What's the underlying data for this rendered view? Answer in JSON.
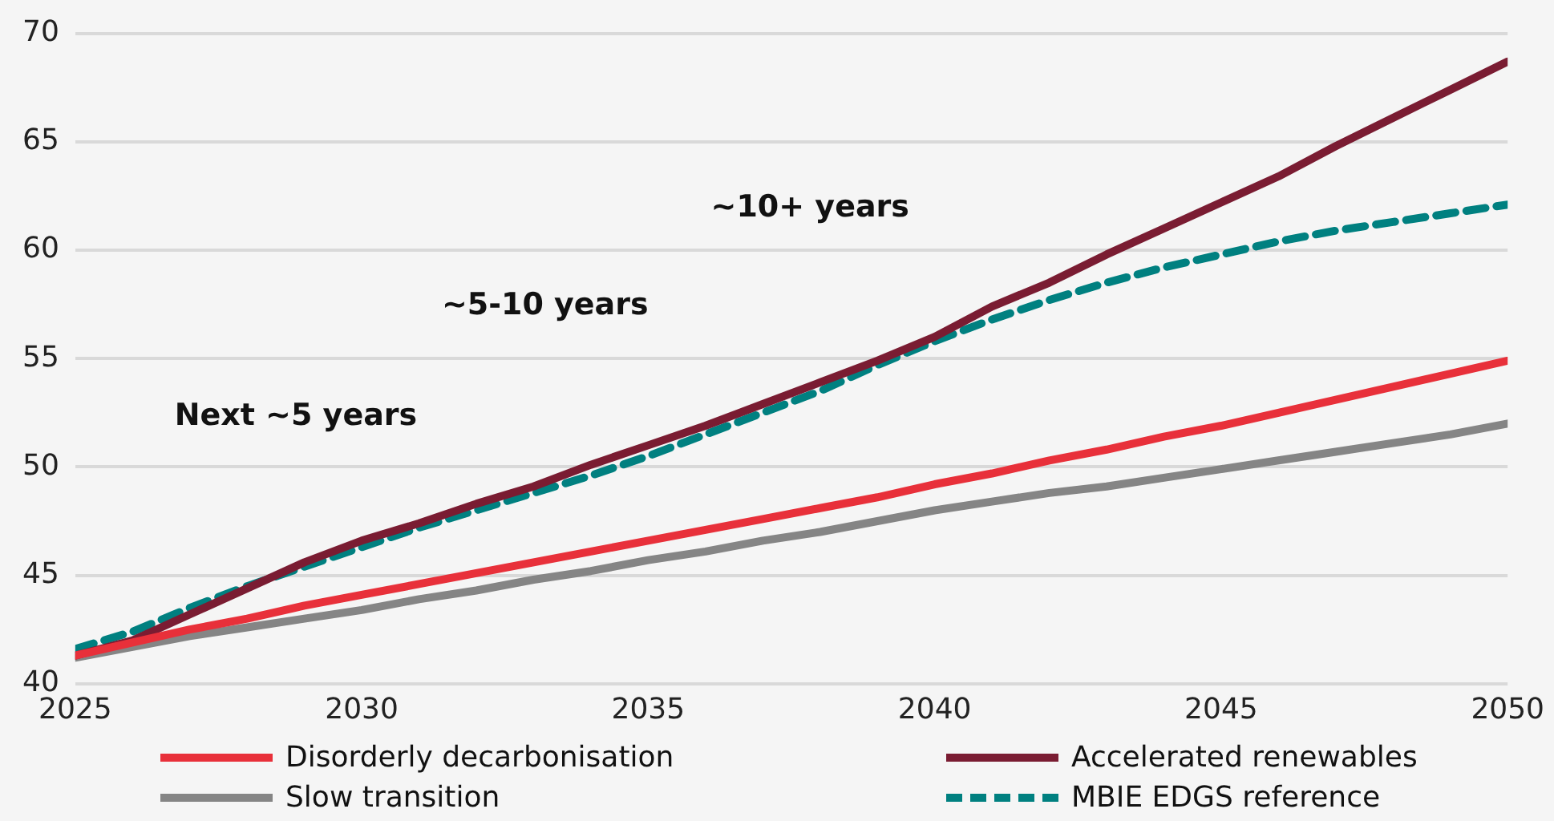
{
  "chart_data": {
    "type": "line",
    "x": [
      2025,
      2026,
      2027,
      2028,
      2029,
      2030,
      2031,
      2032,
      2033,
      2034,
      2035,
      2036,
      2037,
      2038,
      2039,
      2040,
      2041,
      2042,
      2043,
      2044,
      2045,
      2046,
      2047,
      2048,
      2049,
      2050
    ],
    "series": [
      {
        "name": "Disorderly decarbonisation",
        "color": "#e8303a",
        "line_style": "solid",
        "values": [
          41.3,
          41.9,
          42.5,
          43.0,
          43.6,
          44.1,
          44.6,
          45.1,
          45.6,
          46.1,
          46.6,
          47.1,
          47.6,
          48.1,
          48.6,
          49.2,
          49.7,
          50.3,
          50.8,
          51.4,
          51.9,
          52.5,
          53.1,
          53.7,
          54.3,
          54.9
        ]
      },
      {
        "name": "Accelerated renewables",
        "color": "#7a1c32",
        "line_style": "solid",
        "values": [
          41.3,
          42.0,
          43.2,
          44.4,
          45.6,
          46.6,
          47.4,
          48.3,
          49.1,
          50.1,
          51.0,
          51.9,
          52.9,
          53.9,
          54.9,
          56.0,
          57.4,
          58.5,
          59.8,
          61.0,
          62.2,
          63.4,
          64.8,
          66.1,
          67.4,
          68.7
        ]
      },
      {
        "name": "Slow transition",
        "color": "#858585",
        "line_style": "solid",
        "values": [
          41.2,
          41.7,
          42.2,
          42.6,
          43.0,
          43.4,
          43.9,
          44.3,
          44.8,
          45.2,
          45.7,
          46.1,
          46.6,
          47.0,
          47.5,
          48.0,
          48.4,
          48.8,
          49.1,
          49.5,
          49.9,
          50.3,
          50.7,
          51.1,
          51.5,
          52.0
        ]
      },
      {
        "name": "MBIE EDGS reference",
        "color": "#008080",
        "line_style": "dashed",
        "values": [
          41.6,
          42.4,
          43.5,
          44.5,
          45.4,
          46.3,
          47.2,
          48.0,
          48.8,
          49.6,
          50.5,
          51.5,
          52.5,
          53.5,
          54.7,
          55.8,
          56.8,
          57.7,
          58.5,
          59.2,
          59.8,
          60.4,
          60.9,
          61.3,
          61.7,
          62.1
        ]
      }
    ],
    "annotations": [
      "Next ~5 years",
      "~5-10 years",
      "~10+ years"
    ],
    "xlim": [
      2025,
      2050
    ],
    "xticks": [
      2025,
      2030,
      2035,
      2040,
      2045,
      2050
    ],
    "ylim": [
      40,
      70
    ],
    "yticks": [
      40,
      45,
      50,
      55,
      60,
      65,
      70
    ],
    "grid": "y",
    "legend": "bottom",
    "marker": "none"
  }
}
